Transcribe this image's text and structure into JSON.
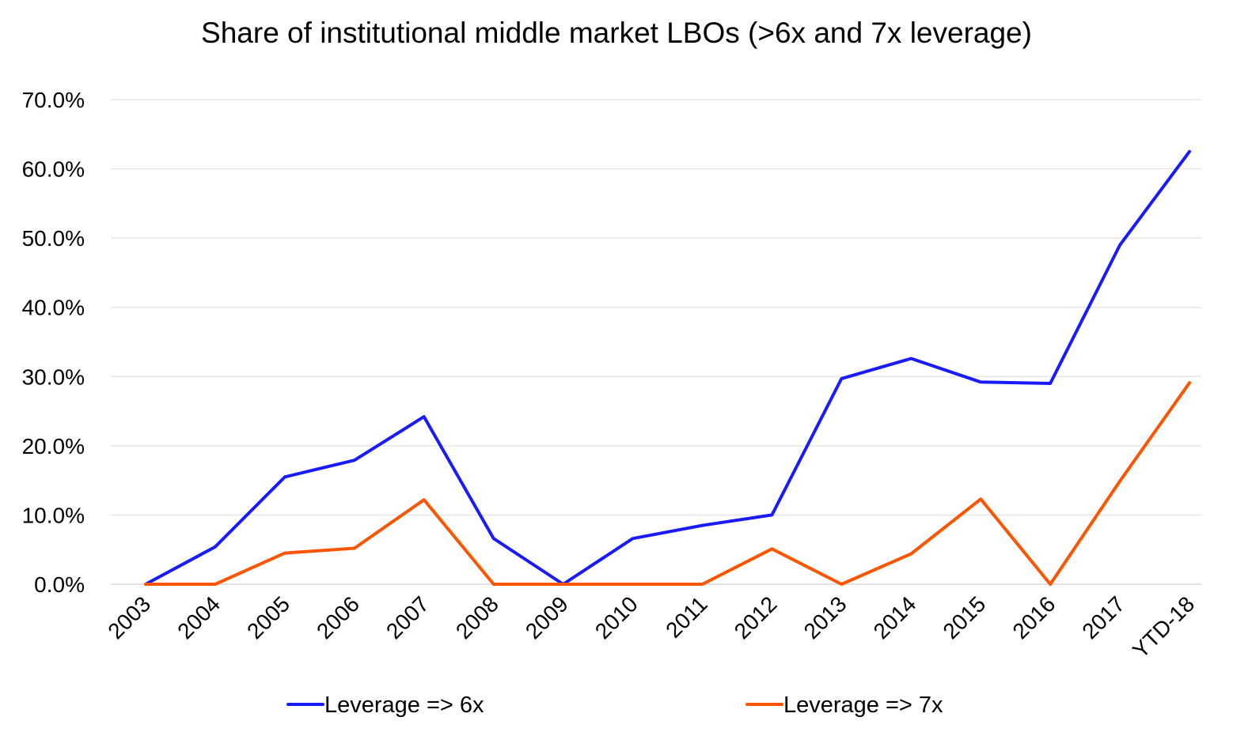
{
  "chart_data": {
    "type": "line",
    "title": "Share of institutional middle market LBOs (>6x and 7x leverage)",
    "xlabel": "",
    "ylabel": "",
    "categories": [
      "2003",
      "2004",
      "2005",
      "2006",
      "2007",
      "2008",
      "2009",
      "2010",
      "2011",
      "2012",
      "2013",
      "2014",
      "2015",
      "2016",
      "2017",
      "YTD-18"
    ],
    "ylim": [
      0,
      70
    ],
    "yticks": [
      0,
      10,
      20,
      30,
      40,
      50,
      60,
      70
    ],
    "ytick_labels": [
      "0.0%",
      "10.0%",
      "20.0%",
      "30.0%",
      "40.0%",
      "50.0%",
      "60.0%",
      "70.0%"
    ],
    "grid": true,
    "legend_position": "bottom",
    "series": [
      {
        "name": "Leverage => 6x",
        "color": "#1a1aff",
        "values": [
          0.0,
          5.4,
          15.5,
          17.9,
          24.2,
          6.6,
          0.0,
          6.6,
          8.5,
          10.0,
          29.7,
          32.6,
          29.2,
          29.0,
          49.0,
          62.5
        ]
      },
      {
        "name": "Leverage => 7x",
        "color": "#ff5500",
        "values": [
          0.0,
          0.0,
          4.5,
          5.2,
          12.2,
          0.0,
          0.0,
          0.0,
          0.0,
          5.1,
          0.0,
          4.4,
          12.3,
          0.0,
          14.9,
          29.1
        ]
      }
    ]
  }
}
